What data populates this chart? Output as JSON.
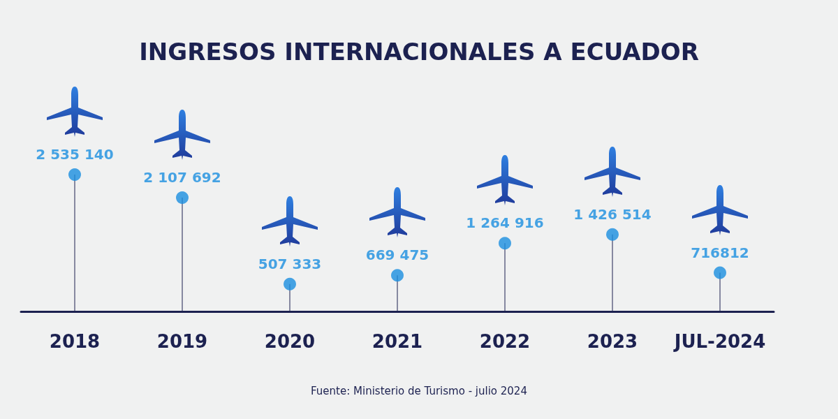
{
  "chart_data": {
    "type": "lollipop",
    "title": "INGRESOS INTERNACIONALES A ECUADOR",
    "categories": [
      "2018",
      "2019",
      "2020",
      "2021",
      "2022",
      "2023",
      "JUL-2024"
    ],
    "values": [
      2535140,
      2107692,
      507333,
      669475,
      1264916,
      1426514,
      716812
    ],
    "value_labels": [
      "2 535 140",
      "2 107 692",
      "507 333",
      "669 475",
      "1 264 916",
      "1 426 514",
      "716812"
    ],
    "color": "#1a8fe0",
    "annotations": [
      "Fuente: Ministerio de Turismo - julio 2024"
    ]
  }
}
